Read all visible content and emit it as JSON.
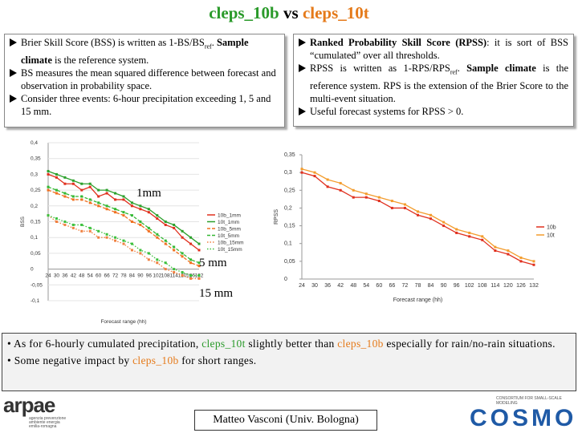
{
  "title": [
    "cleps_10b",
    "vs",
    "cleps_10t"
  ],
  "left_box": [
    [
      "Brier Skill Score (BSS) is written as 1-BS/BS",
      "ref",
      ". ",
      "Sample climate",
      " is the reference system."
    ],
    [
      "BS measures the mean squared difference between forecast and observation in probability space."
    ],
    [
      "Consider three events: 6-hour precipitation exceeding 1, 5 and 15 mm."
    ]
  ],
  "right_box": [
    [
      "Ranked Probability Skill Score (RPSS)",
      ": it is sort of BSS “cumulated” over all thresholds."
    ],
    [
      "RPSS is written as 1-RPS/RPS",
      "ref",
      ". ",
      "Sample climate",
      " is the reference system. RPS is the extension of the Brier Score to the multi-event situation."
    ],
    [
      "Useful forecast systems for RPSS > 0."
    ]
  ],
  "bottom_box": [
    [
      "As for 6-hourly cumulated precipitation, ",
      "cleps_10t",
      " slightly better than ",
      "cleps_10b",
      " especially for rain/no-rain situations."
    ],
    [
      "Some negative impact by ",
      "cleps_10b",
      " for short ranges."
    ]
  ],
  "footer": {
    "author": "Matteo Vasconi (Univ. Bologna)",
    "left_logo": "arpae",
    "left_logo_sub": "agenzia prevenzione ambiente energia emilia-romagna",
    "right_logo": "COSMO",
    "right_logo_sub": "CONSORTIUM FOR SMALL-SCALE MODELING"
  },
  "chart_data": [
    {
      "type": "line",
      "x_label": "Forecast range (hh)",
      "y_label": "BSS",
      "categories": [
        "24",
        "30",
        "36",
        "42",
        "48",
        "54",
        "60",
        "66",
        "72",
        "78",
        "84",
        "90",
        "96",
        "102",
        "108",
        "114",
        "120",
        "126",
        "132"
      ],
      "ylim": [
        -0.1,
        0.4
      ],
      "yticks": [
        {
          "value": -0.1,
          "label": "-0,1"
        },
        {
          "value": -0.05,
          "label": "-0,05"
        },
        0,
        {
          "value": 0.05,
          "label": "0,05"
        },
        {
          "value": 0.1,
          "label": "0,1"
        },
        {
          "value": 0.15,
          "label": "0,15"
        },
        {
          "value": 0.2,
          "label": "0,2"
        },
        {
          "value": 0.25,
          "label": "0,25"
        },
        {
          "value": 0.3,
          "label": "0,3"
        },
        {
          "value": 0.35,
          "label": "0,35"
        },
        {
          "value": 0.4,
          "label": "0,4"
        }
      ],
      "grid": true,
      "annotations": [
        "1mm",
        "5 mm",
        "15 mm"
      ],
      "series": [
        {
          "name": "10b_1mm",
          "color": "#e0301e",
          "dash": "solid",
          "values": [
            0.3,
            0.29,
            0.27,
            0.27,
            0.25,
            0.26,
            0.23,
            0.24,
            0.22,
            0.22,
            0.2,
            0.19,
            0.18,
            0.16,
            0.14,
            0.13,
            0.1,
            0.08,
            0.06
          ]
        },
        {
          "name": "10t_1mm",
          "color": "#2ca02c",
          "dash": "solid",
          "values": [
            0.31,
            0.3,
            0.29,
            0.28,
            0.27,
            0.27,
            0.25,
            0.25,
            0.24,
            0.23,
            0.21,
            0.2,
            0.19,
            0.17,
            0.15,
            0.14,
            0.12,
            0.1,
            0.08
          ]
        },
        {
          "name": "10b_5mm",
          "color": "#f07020",
          "dash": "dashed",
          "values": [
            0.25,
            0.24,
            0.23,
            0.22,
            0.22,
            0.21,
            0.2,
            0.19,
            0.18,
            0.17,
            0.15,
            0.14,
            0.12,
            0.1,
            0.08,
            0.06,
            0.04,
            0.02,
            0.01
          ]
        },
        {
          "name": "10t_5mm",
          "color": "#33b833",
          "dash": "dashed",
          "values": [
            0.26,
            0.25,
            0.24,
            0.23,
            0.23,
            0.22,
            0.21,
            0.2,
            0.19,
            0.18,
            0.17,
            0.15,
            0.13,
            0.11,
            0.09,
            0.07,
            0.05,
            0.03,
            0.02
          ]
        },
        {
          "name": "10b_15mm",
          "color": "#f08040",
          "dash": "dotted",
          "values": [
            0.17,
            0.15,
            0.14,
            0.13,
            0.12,
            0.12,
            0.1,
            0.1,
            0.09,
            0.08,
            0.06,
            0.05,
            0.03,
            0.02,
            0.0,
            -0.01,
            -0.02,
            -0.03,
            -0.03
          ]
        },
        {
          "name": "10t_15mm",
          "color": "#3cc03c",
          "dash": "dotted",
          "values": [
            0.17,
            0.16,
            0.15,
            0.14,
            0.14,
            0.13,
            0.12,
            0.11,
            0.1,
            0.09,
            0.08,
            0.06,
            0.05,
            0.03,
            0.02,
            0.0,
            -0.01,
            -0.02,
            -0.02
          ]
        }
      ]
    },
    {
      "type": "line",
      "x_label": "Forecast range (hh)",
      "y_label": "RPSS",
      "categories": [
        "24",
        "30",
        "36",
        "42",
        "48",
        "54",
        "60",
        "66",
        "72",
        "78",
        "84",
        "90",
        "96",
        "102",
        "108",
        "114",
        "120",
        "126",
        "132"
      ],
      "ylim": [
        0,
        0.35
      ],
      "yticks": [
        0,
        {
          "value": 0.05,
          "label": "0,05"
        },
        {
          "value": 0.1,
          "label": "0,1"
        },
        {
          "value": 0.15,
          "label": "0,15"
        },
        {
          "value": 0.2,
          "label": "0,2"
        },
        {
          "value": 0.25,
          "label": "0,25"
        },
        {
          "value": 0.3,
          "label": "0,3"
        },
        {
          "value": 0.35,
          "label": "0,35"
        }
      ],
      "grid": false,
      "series": [
        {
          "name": "10b",
          "color": "#e0301e",
          "dash": "solid",
          "values": [
            0.3,
            0.29,
            0.26,
            0.25,
            0.23,
            0.23,
            0.22,
            0.2,
            0.2,
            0.18,
            0.17,
            0.15,
            0.13,
            0.12,
            0.11,
            0.08,
            0.07,
            0.05,
            0.04
          ]
        },
        {
          "name": "10t",
          "color": "#f39c2c",
          "dash": "solid",
          "values": [
            0.31,
            0.3,
            0.28,
            0.27,
            0.25,
            0.24,
            0.23,
            0.22,
            0.21,
            0.19,
            0.18,
            0.16,
            0.14,
            0.13,
            0.12,
            0.09,
            0.08,
            0.06,
            0.05
          ]
        }
      ]
    }
  ]
}
